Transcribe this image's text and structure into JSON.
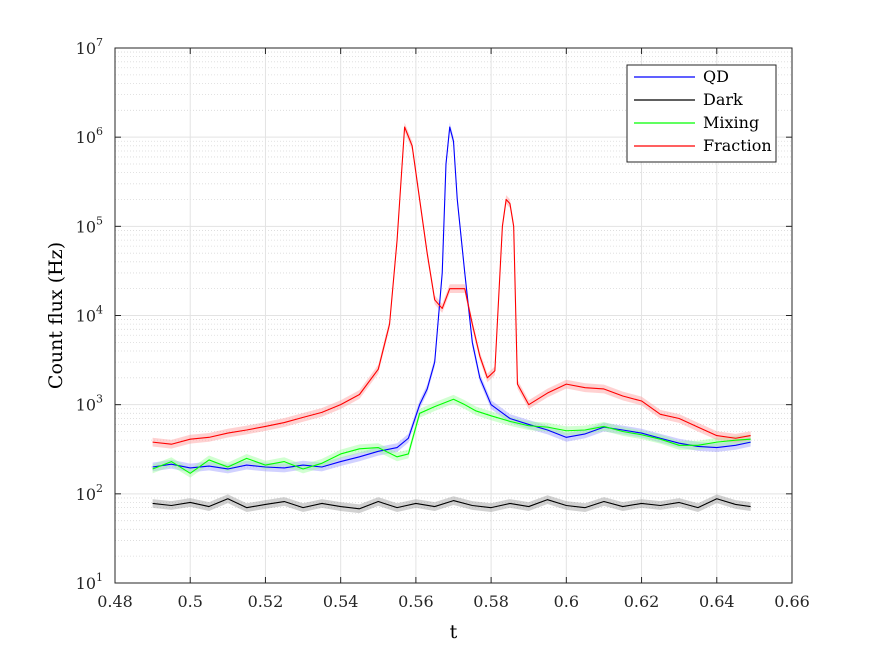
{
  "chart_data": {
    "type": "line",
    "xlabel": "t",
    "ylabel": "Count flux (Hz)",
    "xlim": [
      0.48,
      0.66
    ],
    "ylim": [
      10,
      10000000
    ],
    "yscale": "log",
    "grid": true,
    "minor_grid": true,
    "legend_position": "top-right",
    "x_ticks": [
      0.48,
      0.5,
      0.52,
      0.54,
      0.56,
      0.58,
      0.6,
      0.62,
      0.64,
      0.66
    ],
    "x_tick_labels": [
      "0.48",
      "0.5",
      "0.52",
      "0.54",
      "0.56",
      "0.58",
      "0.6",
      "0.62",
      "0.64",
      "0.66"
    ],
    "y_ticks": [
      {
        "value": 10,
        "base": "10",
        "exp": "1"
      },
      {
        "value": 100,
        "base": "10",
        "exp": "2"
      },
      {
        "value": 1000,
        "base": "10",
        "exp": "3"
      },
      {
        "value": 10000,
        "base": "10",
        "exp": "4"
      },
      {
        "value": 100000,
        "base": "10",
        "exp": "5"
      },
      {
        "value": 1000000,
        "base": "10",
        "exp": "6"
      },
      {
        "value": 10000000,
        "base": "10",
        "exp": "7"
      }
    ],
    "series": [
      {
        "name": "QD",
        "color": "#0000ff",
        "band_color": "#9999ff",
        "x": [
          0.49,
          0.495,
          0.5,
          0.505,
          0.51,
          0.515,
          0.52,
          0.525,
          0.53,
          0.535,
          0.54,
          0.545,
          0.55,
          0.555,
          0.558,
          0.561,
          0.563,
          0.565,
          0.567,
          0.568,
          0.569,
          0.57,
          0.571,
          0.573,
          0.575,
          0.577,
          0.58,
          0.585,
          0.59,
          0.595,
          0.6,
          0.605,
          0.61,
          0.615,
          0.62,
          0.625,
          0.63,
          0.635,
          0.64,
          0.645,
          0.649
        ],
        "y": [
          200,
          215,
          195,
          205,
          190,
          210,
          200,
          195,
          210,
          200,
          230,
          260,
          300,
          330,
          420,
          1000,
          1500,
          3000,
          30000,
          500000,
          1300000,
          900000,
          200000,
          30000,
          5000,
          2000,
          1000,
          700,
          600,
          520,
          430,
          470,
          560,
          520,
          480,
          420,
          370,
          340,
          330,
          350,
          380
        ]
      },
      {
        "name": "Dark",
        "color": "#000000",
        "band_color": "#999999",
        "x": [
          0.49,
          0.495,
          0.5,
          0.505,
          0.51,
          0.515,
          0.52,
          0.525,
          0.53,
          0.535,
          0.54,
          0.545,
          0.55,
          0.555,
          0.56,
          0.565,
          0.57,
          0.575,
          0.58,
          0.585,
          0.59,
          0.595,
          0.6,
          0.605,
          0.61,
          0.615,
          0.62,
          0.625,
          0.63,
          0.635,
          0.64,
          0.645,
          0.649
        ],
        "y": [
          78,
          74,
          80,
          72,
          88,
          70,
          76,
          82,
          70,
          78,
          72,
          68,
          82,
          70,
          78,
          72,
          84,
          74,
          70,
          78,
          72,
          86,
          74,
          70,
          82,
          72,
          78,
          74,
          80,
          70,
          88,
          76,
          72
        ]
      },
      {
        "name": "Mixing",
        "color": "#00ff00",
        "band_color": "#99ff99",
        "x": [
          0.49,
          0.495,
          0.5,
          0.505,
          0.51,
          0.515,
          0.52,
          0.525,
          0.53,
          0.535,
          0.54,
          0.545,
          0.55,
          0.555,
          0.558,
          0.561,
          0.565,
          0.57,
          0.573,
          0.576,
          0.58,
          0.585,
          0.59,
          0.595,
          0.6,
          0.605,
          0.61,
          0.615,
          0.62,
          0.625,
          0.63,
          0.635,
          0.64,
          0.645,
          0.649
        ],
        "y": [
          190,
          230,
          170,
          240,
          200,
          250,
          210,
          230,
          190,
          220,
          280,
          320,
          330,
          260,
          280,
          800,
          950,
          1150,
          1000,
          850,
          750,
          650,
          580,
          560,
          510,
          520,
          570,
          500,
          460,
          410,
          350,
          350,
          380,
          400,
          410
        ]
      },
      {
        "name": "Fraction",
        "color": "#ff0000",
        "band_color": "#ff9999",
        "x": [
          0.49,
          0.495,
          0.5,
          0.505,
          0.51,
          0.515,
          0.52,
          0.525,
          0.53,
          0.535,
          0.54,
          0.545,
          0.55,
          0.553,
          0.555,
          0.557,
          0.559,
          0.561,
          0.563,
          0.565,
          0.567,
          0.569,
          0.571,
          0.573,
          0.575,
          0.577,
          0.579,
          0.581,
          0.583,
          0.584,
          0.585,
          0.586,
          0.587,
          0.59,
          0.595,
          0.6,
          0.605,
          0.61,
          0.615,
          0.62,
          0.625,
          0.63,
          0.635,
          0.64,
          0.645,
          0.649
        ],
        "y": [
          380,
          360,
          410,
          430,
          480,
          520,
          570,
          630,
          720,
          820,
          1000,
          1300,
          2500,
          8000,
          70000,
          1300000,
          800000,
          200000,
          50000,
          15000,
          12000,
          20000,
          20000,
          20000,
          8000,
          3500,
          2000,
          2400,
          100000,
          200000,
          180000,
          100000,
          1700,
          1000,
          1350,
          1700,
          1550,
          1500,
          1250,
          1100,
          780,
          700,
          560,
          450,
          420,
          450
        ]
      }
    ]
  }
}
